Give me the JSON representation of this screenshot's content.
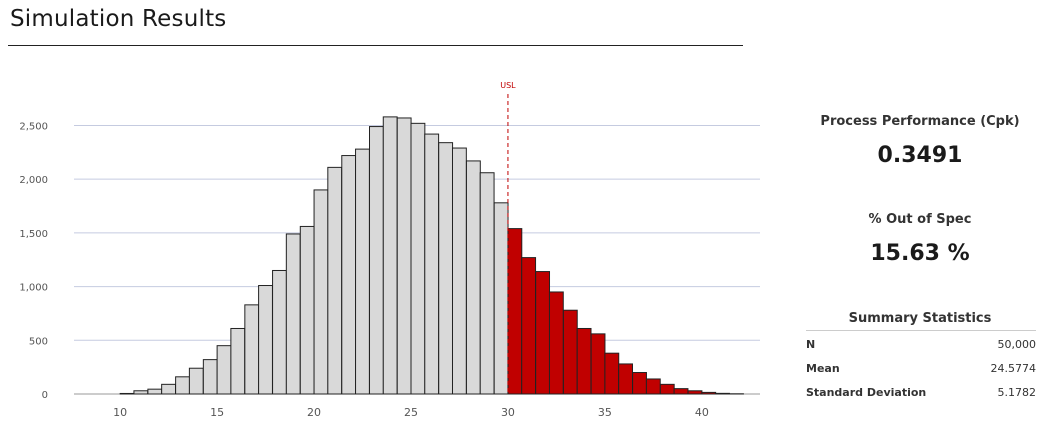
{
  "page": {
    "title": "Simulation Results"
  },
  "metrics": {
    "cpk_label": "Process Performance (Cpk)",
    "cpk_value": "0.3491",
    "oos_label": "% Out of Spec",
    "oos_value": "15.63 %"
  },
  "summary": {
    "title": "Summary Statistics",
    "rows": [
      {
        "label": "N",
        "value": "50,000"
      },
      {
        "label": "Mean",
        "value": "24.5774"
      },
      {
        "label": "Standard Deviation",
        "value": "5.1782"
      }
    ]
  },
  "colors": {
    "in_spec_fill": "#d9d9d9",
    "out_spec_fill": "#c00000",
    "bar_stroke": "#222222",
    "usl_line": "#c00000",
    "grid": "#c5cbe0"
  },
  "chart_data": {
    "type": "bar",
    "title": "",
    "xlabel": "",
    "ylabel": "",
    "xlim": [
      7,
      43
    ],
    "ylim": [
      0,
      2700
    ],
    "x_ticks": [
      10,
      15,
      20,
      25,
      30,
      35,
      40
    ],
    "y_ticks": [
      0,
      500,
      1000,
      1500,
      2000,
      2500
    ],
    "y_tick_labels": [
      "0",
      "500",
      "1,000",
      "1,500",
      "2,000",
      "2,500"
    ],
    "bin_width": 0.714,
    "usl": {
      "label": "USL",
      "value": 30
    },
    "bins": [
      {
        "x": 10.0,
        "value": 5,
        "out_of_spec": false
      },
      {
        "x": 10.71,
        "value": 30,
        "out_of_spec": false
      },
      {
        "x": 11.43,
        "value": 45,
        "out_of_spec": false
      },
      {
        "x": 12.14,
        "value": 90,
        "out_of_spec": false
      },
      {
        "x": 12.86,
        "value": 160,
        "out_of_spec": false
      },
      {
        "x": 13.57,
        "value": 240,
        "out_of_spec": false
      },
      {
        "x": 14.29,
        "value": 320,
        "out_of_spec": false
      },
      {
        "x": 15.0,
        "value": 450,
        "out_of_spec": false
      },
      {
        "x": 15.71,
        "value": 610,
        "out_of_spec": false
      },
      {
        "x": 16.43,
        "value": 830,
        "out_of_spec": false
      },
      {
        "x": 17.14,
        "value": 1010,
        "out_of_spec": false
      },
      {
        "x": 17.86,
        "value": 1150,
        "out_of_spec": false
      },
      {
        "x": 18.57,
        "value": 1490,
        "out_of_spec": false
      },
      {
        "x": 19.29,
        "value": 1560,
        "out_of_spec": false
      },
      {
        "x": 20.0,
        "value": 1900,
        "out_of_spec": false
      },
      {
        "x": 20.71,
        "value": 2110,
        "out_of_spec": false
      },
      {
        "x": 21.43,
        "value": 2220,
        "out_of_spec": false
      },
      {
        "x": 22.14,
        "value": 2280,
        "out_of_spec": false
      },
      {
        "x": 22.86,
        "value": 2490,
        "out_of_spec": false
      },
      {
        "x": 23.57,
        "value": 2580,
        "out_of_spec": false
      },
      {
        "x": 24.29,
        "value": 2570,
        "out_of_spec": false
      },
      {
        "x": 25.0,
        "value": 2520,
        "out_of_spec": false
      },
      {
        "x": 25.71,
        "value": 2420,
        "out_of_spec": false
      },
      {
        "x": 26.43,
        "value": 2340,
        "out_of_spec": false
      },
      {
        "x": 27.14,
        "value": 2290,
        "out_of_spec": false
      },
      {
        "x": 27.86,
        "value": 2170,
        "out_of_spec": false
      },
      {
        "x": 28.57,
        "value": 2060,
        "out_of_spec": false
      },
      {
        "x": 29.29,
        "value": 1780,
        "out_of_spec": false
      },
      {
        "x": 30.0,
        "value": 1540,
        "out_of_spec": true
      },
      {
        "x": 30.71,
        "value": 1270,
        "out_of_spec": true
      },
      {
        "x": 31.43,
        "value": 1140,
        "out_of_spec": true
      },
      {
        "x": 32.14,
        "value": 950,
        "out_of_spec": true
      },
      {
        "x": 32.86,
        "value": 780,
        "out_of_spec": true
      },
      {
        "x": 33.57,
        "value": 610,
        "out_of_spec": true
      },
      {
        "x": 34.29,
        "value": 560,
        "out_of_spec": true
      },
      {
        "x": 35.0,
        "value": 380,
        "out_of_spec": true
      },
      {
        "x": 35.71,
        "value": 280,
        "out_of_spec": true
      },
      {
        "x": 36.43,
        "value": 200,
        "out_of_spec": true
      },
      {
        "x": 37.14,
        "value": 140,
        "out_of_spec": true
      },
      {
        "x": 37.86,
        "value": 90,
        "out_of_spec": true
      },
      {
        "x": 38.57,
        "value": 50,
        "out_of_spec": true
      },
      {
        "x": 39.29,
        "value": 30,
        "out_of_spec": true
      },
      {
        "x": 40.0,
        "value": 15,
        "out_of_spec": true
      },
      {
        "x": 40.71,
        "value": 6,
        "out_of_spec": true
      },
      {
        "x": 41.43,
        "value": 2,
        "out_of_spec": true
      }
    ]
  }
}
